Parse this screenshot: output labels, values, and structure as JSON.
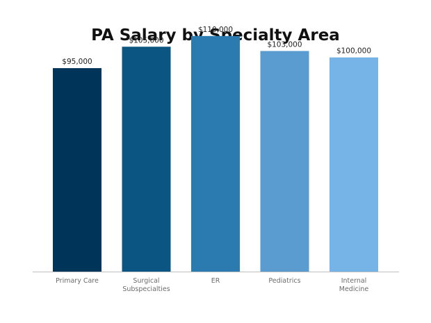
{
  "chart_data": {
    "type": "bar",
    "title": "PA Salary by Specialty Area",
    "xlabel": "",
    "ylabel": "",
    "categories": [
      [
        "Primary Care"
      ],
      [
        "Surgical",
        "Subspecialties"
      ],
      [
        "ER"
      ],
      [
        "Pediatrics"
      ],
      [
        "Internal",
        "Medicine"
      ]
    ],
    "values": [
      95000,
      105000,
      110000,
      103000,
      100000
    ],
    "value_labels": [
      "$95,000",
      "$105,000",
      "$110,000",
      "$103,000",
      "$100,000"
    ],
    "colors": [
      "#003459",
      "#0b5583",
      "#2b7bb0",
      "#5a9bd0",
      "#76b3e6"
    ],
    "ylim": [
      0,
      120000
    ],
    "grid": false,
    "legend": "none"
  }
}
